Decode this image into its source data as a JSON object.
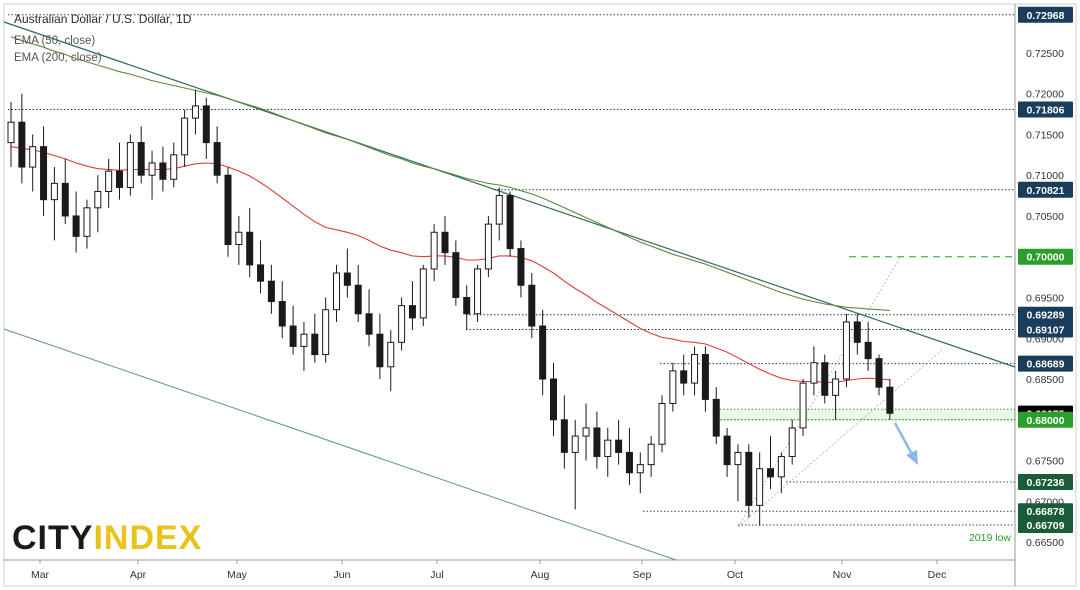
{
  "header": {
    "title": "Australian Dollar / U.S. Dollar, 1D",
    "ema_fast": "EMA (50, close)",
    "ema_slow": "EMA (200, close)"
  },
  "brand": {
    "part1": "CITY",
    "part2": "INDEX",
    "color1": "#1a1a1a",
    "color2": "#e8c31a"
  },
  "annotations": {
    "low_label": "2019 low"
  },
  "chart_data": {
    "type": "candlestick",
    "title": "Australian Dollar / U.S. Dollar, 1D",
    "x_ticks": [
      "Mar",
      "Apr",
      "May",
      "Jun",
      "Jul",
      "Aug",
      "Sep",
      "Oct",
      "Nov",
      "Dec"
    ],
    "y_ticks": [
      "0.72500",
      "0.72000",
      "0.71500",
      "0.71000",
      "0.70500",
      "0.69500",
      "0.69000",
      "0.68500",
      "0.67500",
      "0.67000",
      "0.66500"
    ],
    "ylim": [
      0.6628,
      0.731
    ],
    "x_range": [
      "Mar",
      "Dec"
    ],
    "key_levels": [
      {
        "label": "0.72968",
        "value": 0.72968,
        "color": "#1a3d5c",
        "style": "dotted",
        "from": "start"
      },
      {
        "label": "0.71806",
        "value": 0.71806,
        "color": "#1a3d5c",
        "style": "dotted",
        "from": "start"
      },
      {
        "label": "0.70821",
        "value": 0.70821,
        "color": "#1a3d5c",
        "style": "dotted",
        "from": "Jul"
      },
      {
        "label": "0.70000",
        "value": 0.7,
        "color": "#2aa02a",
        "style": "dashed",
        "from": "Nov"
      },
      {
        "label": "0.69289",
        "value": 0.69289,
        "color": "#1a3d5c",
        "style": "dotted",
        "from": "Jul"
      },
      {
        "label": "0.69107",
        "value": 0.69107,
        "color": "#1a3d5c",
        "style": "dotted",
        "from": "Jul"
      },
      {
        "label": "0.68689",
        "value": 0.68689,
        "color": "#1a3d5c",
        "style": "dotted",
        "from": "Sep"
      },
      {
        "label": "0.68075",
        "value": 0.68075,
        "color": "#000000",
        "style": "none",
        "from": "end"
      },
      {
        "label": "0.68000",
        "value": 0.68,
        "color": "#2aa02a",
        "style": "dotted",
        "from": "Sep"
      },
      {
        "label": "0.67236",
        "value": 0.67236,
        "color": "#1a5c3a",
        "style": "dotted",
        "from": "Oct"
      },
      {
        "label": "0.66878",
        "value": 0.66878,
        "color": "#1a5c3a",
        "style": "dotted",
        "from": "Sep"
      },
      {
        "label": "0.66709",
        "value": 0.66709,
        "color": "#1a5c3a",
        "style": "dotted",
        "from": "Oct"
      }
    ],
    "series": [
      {
        "name": "AUD/USD",
        "kind": "candlestick",
        "up_color": "#1a1a1a",
        "down_color": "#1a1a1a",
        "ohlc": [
          [
            0.714,
            0.719,
            0.711,
            0.7165
          ],
          [
            0.7165,
            0.72,
            0.709,
            0.711
          ],
          [
            0.711,
            0.715,
            0.708,
            0.7135
          ],
          [
            0.7135,
            0.716,
            0.705,
            0.707
          ],
          [
            0.707,
            0.711,
            0.702,
            0.709
          ],
          [
            0.709,
            0.712,
            0.704,
            0.705
          ],
          [
            0.705,
            0.708,
            0.7005,
            0.7025
          ],
          [
            0.7025,
            0.707,
            0.701,
            0.706
          ],
          [
            0.706,
            0.71,
            0.703,
            0.708
          ],
          [
            0.708,
            0.712,
            0.706,
            0.7105
          ],
          [
            0.7105,
            0.714,
            0.707,
            0.7085
          ],
          [
            0.7085,
            0.715,
            0.7075,
            0.714
          ],
          [
            0.714,
            0.716,
            0.709,
            0.71
          ],
          [
            0.71,
            0.713,
            0.707,
            0.7115
          ],
          [
            0.7115,
            0.7135,
            0.708,
            0.7095
          ],
          [
            0.7095,
            0.714,
            0.7085,
            0.7125
          ],
          [
            0.7125,
            0.718,
            0.711,
            0.717
          ],
          [
            0.717,
            0.7205,
            0.715,
            0.7185
          ],
          [
            0.7185,
            0.7195,
            0.712,
            0.714
          ],
          [
            0.714,
            0.716,
            0.709,
            0.71
          ],
          [
            0.71,
            0.711,
            0.7,
            0.7015
          ],
          [
            0.7015,
            0.705,
            0.699,
            0.703
          ],
          [
            0.703,
            0.706,
            0.6975,
            0.699
          ],
          [
            0.699,
            0.702,
            0.6955,
            0.697
          ],
          [
            0.697,
            0.699,
            0.693,
            0.6945
          ],
          [
            0.6945,
            0.697,
            0.69,
            0.6915
          ],
          [
            0.6915,
            0.694,
            0.688,
            0.689
          ],
          [
            0.689,
            0.692,
            0.686,
            0.6905
          ],
          [
            0.6905,
            0.693,
            0.687,
            0.688
          ],
          [
            0.688,
            0.695,
            0.687,
            0.6935
          ],
          [
            0.6935,
            0.699,
            0.692,
            0.698
          ],
          [
            0.698,
            0.701,
            0.695,
            0.6965
          ],
          [
            0.6965,
            0.699,
            0.692,
            0.693
          ],
          [
            0.693,
            0.696,
            0.689,
            0.6905
          ],
          [
            0.6905,
            0.693,
            0.685,
            0.6865
          ],
          [
            0.6865,
            0.691,
            0.6835,
            0.6895
          ],
          [
            0.6895,
            0.695,
            0.6885,
            0.694
          ],
          [
            0.694,
            0.697,
            0.691,
            0.6925
          ],
          [
            0.6925,
            0.699,
            0.6915,
            0.6985
          ],
          [
            0.6985,
            0.704,
            0.697,
            0.703
          ],
          [
            0.703,
            0.705,
            0.699,
            0.7005
          ],
          [
            0.7005,
            0.702,
            0.694,
            0.695
          ],
          [
            0.695,
            0.6965,
            0.691,
            0.693
          ],
          [
            0.693,
            0.699,
            0.692,
            0.6985
          ],
          [
            0.6985,
            0.705,
            0.6975,
            0.704
          ],
          [
            0.704,
            0.7085,
            0.702,
            0.7075
          ],
          [
            0.7075,
            0.708,
            0.7,
            0.701
          ],
          [
            0.701,
            0.702,
            0.695,
            0.6965
          ],
          [
            0.6965,
            0.698,
            0.69,
            0.6915
          ],
          [
            0.6915,
            0.6935,
            0.683,
            0.685
          ],
          [
            0.685,
            0.687,
            0.678,
            0.68
          ],
          [
            0.68,
            0.683,
            0.674,
            0.676
          ],
          [
            0.676,
            0.68,
            0.669,
            0.678
          ],
          [
            0.678,
            0.682,
            0.675,
            0.679
          ],
          [
            0.679,
            0.681,
            0.674,
            0.6755
          ],
          [
            0.6755,
            0.679,
            0.673,
            0.6775
          ],
          [
            0.6775,
            0.68,
            0.6745,
            0.676
          ],
          [
            0.676,
            0.679,
            0.672,
            0.6735
          ],
          [
            0.6735,
            0.676,
            0.671,
            0.6745
          ],
          [
            0.6745,
            0.678,
            0.673,
            0.677
          ],
          [
            0.677,
            0.683,
            0.676,
            0.682
          ],
          [
            0.682,
            0.687,
            0.681,
            0.686
          ],
          [
            0.686,
            0.688,
            0.683,
            0.6845
          ],
          [
            0.6845,
            0.689,
            0.683,
            0.688
          ],
          [
            0.688,
            0.689,
            0.681,
            0.6825
          ],
          [
            0.6825,
            0.684,
            0.677,
            0.678
          ],
          [
            0.678,
            0.679,
            0.673,
            0.6745
          ],
          [
            0.6745,
            0.677,
            0.67,
            0.676
          ],
          [
            0.676,
            0.677,
            0.668,
            0.6695
          ],
          [
            0.6695,
            0.676,
            0.667,
            0.674
          ],
          [
            0.674,
            0.678,
            0.6715,
            0.673
          ],
          [
            0.673,
            0.676,
            0.671,
            0.6755
          ],
          [
            0.6755,
            0.68,
            0.6745,
            0.679
          ],
          [
            0.679,
            0.685,
            0.678,
            0.6845
          ],
          [
            0.6845,
            0.689,
            0.683,
            0.687
          ],
          [
            0.687,
            0.688,
            0.682,
            0.683
          ],
          [
            0.683,
            0.686,
            0.68,
            0.685
          ],
          [
            0.685,
            0.693,
            0.684,
            0.692
          ],
          [
            0.692,
            0.693,
            0.688,
            0.6895
          ],
          [
            0.6895,
            0.692,
            0.686,
            0.6875
          ],
          [
            0.6875,
            0.688,
            0.683,
            0.684
          ],
          [
            0.684,
            0.685,
            0.68,
            0.6808
          ]
        ]
      },
      {
        "name": "EMA (50, close)",
        "kind": "line",
        "color": "#e03a3a",
        "values": [
          0.7135,
          0.7133,
          0.7131,
          0.7128,
          0.7124,
          0.712,
          0.7115,
          0.7111,
          0.7108,
          0.7107,
          0.7106,
          0.7107,
          0.7107,
          0.7107,
          0.7107,
          0.7108,
          0.7111,
          0.7114,
          0.7115,
          0.7114,
          0.711,
          0.7105,
          0.7099,
          0.7091,
          0.7082,
          0.7072,
          0.7062,
          0.7052,
          0.7043,
          0.7036,
          0.7033,
          0.703,
          0.7026,
          0.702,
          0.7013,
          0.7008,
          0.7005,
          0.7001,
          0.7,
          0.7001,
          0.7001,
          0.6999,
          0.6996,
          0.6996,
          0.6998,
          0.7001,
          0.7001,
          0.6999,
          0.6995,
          0.6988,
          0.698,
          0.697,
          0.6961,
          0.6953,
          0.6944,
          0.6936,
          0.6928,
          0.692,
          0.6912,
          0.6906,
          0.6901,
          0.6899,
          0.6896,
          0.6895,
          0.6893,
          0.6888,
          0.6883,
          0.6876,
          0.6869,
          0.6862,
          0.6856,
          0.6851,
          0.6848,
          0.6847,
          0.6847,
          0.6846,
          0.6846,
          0.6848,
          0.685,
          0.6851,
          0.685,
          0.6849
        ]
      },
      {
        "name": "EMA (200, close)",
        "kind": "line",
        "color": "#5b8a3a",
        "values": [
          0.727,
          0.7265,
          0.7261,
          0.7257,
          0.7252,
          0.7248,
          0.7243,
          0.7239,
          0.7235,
          0.7231,
          0.7227,
          0.7224,
          0.722,
          0.7216,
          0.7213,
          0.721,
          0.7207,
          0.7204,
          0.7201,
          0.7198,
          0.7194,
          0.719,
          0.7186,
          0.7182,
          0.7177,
          0.7172,
          0.7167,
          0.7162,
          0.7157,
          0.7152,
          0.7148,
          0.7144,
          0.7139,
          0.7134,
          0.7129,
          0.7124,
          0.712,
          0.7115,
          0.7111,
          0.7108,
          0.7104,
          0.71,
          0.7096,
          0.7093,
          0.709,
          0.7088,
          0.7085,
          0.7081,
          0.7077,
          0.7072,
          0.7066,
          0.706,
          0.7054,
          0.7048,
          0.7042,
          0.7036,
          0.703,
          0.7024,
          0.7018,
          0.7013,
          0.7008,
          0.7003,
          0.6999,
          0.6995,
          0.6991,
          0.6986,
          0.6981,
          0.6976,
          0.6971,
          0.6966,
          0.6961,
          0.6956,
          0.6952,
          0.6948,
          0.6945,
          0.6942,
          0.694,
          0.6938,
          0.6937,
          0.6936,
          0.6935,
          0.6934
        ]
      }
    ],
    "grid": false,
    "legend": "top-left"
  }
}
